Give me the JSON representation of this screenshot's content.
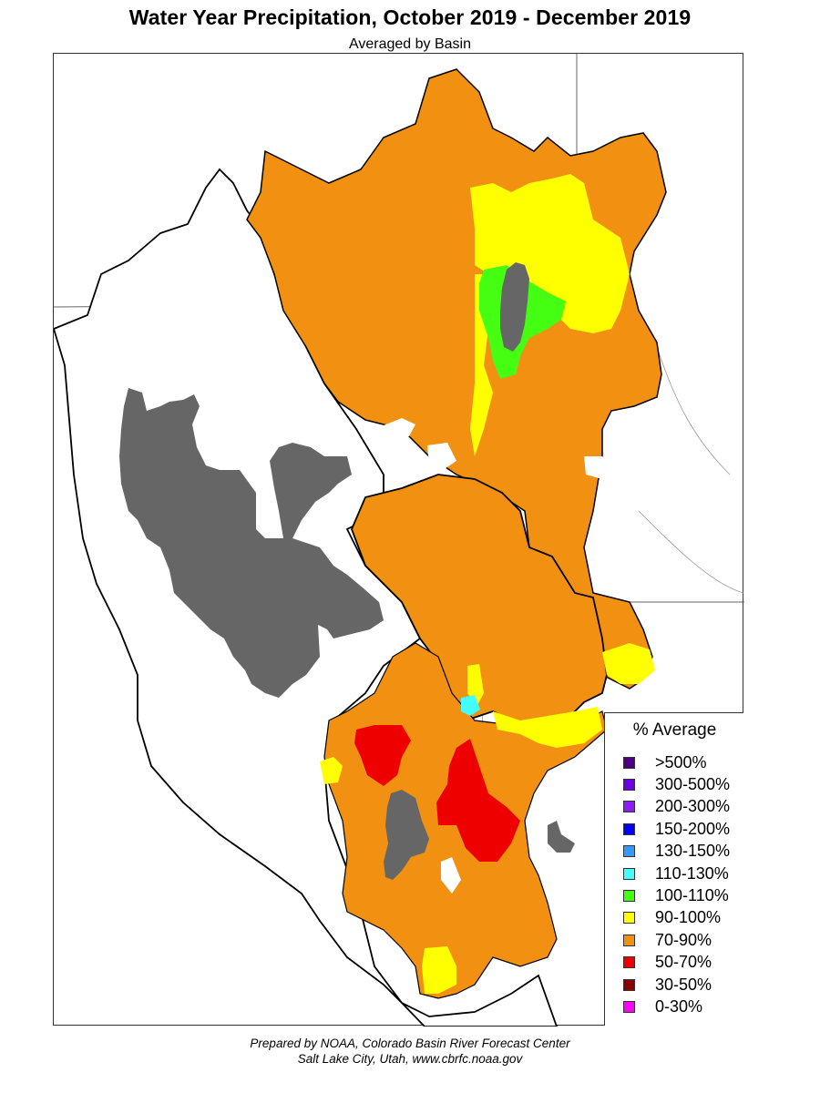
{
  "header": {
    "title": "Water Year Precipitation, October 2019 - December 2019",
    "subtitle": "Averaged by Basin"
  },
  "legend": {
    "title": "% Average",
    "items": [
      {
        "label": ">500%",
        "color": "#4b0082"
      },
      {
        "label": "300-500%",
        "color": "#6a00e8"
      },
      {
        "label": "200-300%",
        "color": "#8a1cf5"
      },
      {
        "label": "150-200%",
        "color": "#0000ff"
      },
      {
        "label": "130-150%",
        "color": "#3399ff"
      },
      {
        "label": "110-130%",
        "color": "#44ffff"
      },
      {
        "label": "100-110%",
        "color": "#44ff11"
      },
      {
        "label": "90-100%",
        "color": "#ffff00"
      },
      {
        "label": "70-90%",
        "color": "#f29111"
      },
      {
        "label": "50-70%",
        "color": "#ee0000"
      },
      {
        "label": "30-50%",
        "color": "#880000"
      },
      {
        "label": "0-30%",
        "color": "#ff00ff"
      }
    ]
  },
  "map": {
    "colors": {
      "orange": "#f29111",
      "yellow": "#ffff00",
      "green": "#44ff11",
      "cyan": "#44ffff",
      "red": "#ee0000",
      "lake": "#666666"
    }
  },
  "footer": {
    "line1": "Prepared by NOAA, Colorado Basin River Forecast Center",
    "line2": "Salt Lake City, Utah, www.cbrfc.noaa.gov"
  }
}
